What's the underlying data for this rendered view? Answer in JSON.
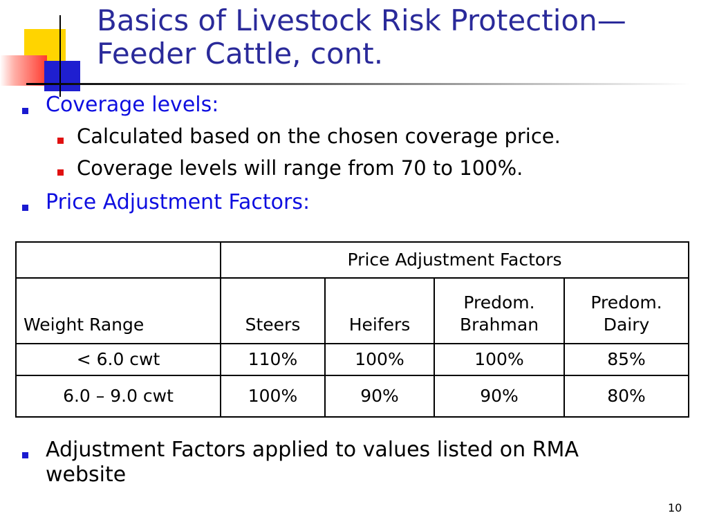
{
  "title": {
    "line1": "Basics of Livestock Risk Protection—",
    "line2": "Feeder Cattle, cont."
  },
  "bullets": {
    "coverage_levels": "Coverage levels:",
    "sub1": "Calculated based on the chosen coverage price.",
    "sub2": "Coverage levels will range from 70 to 100%.",
    "price_adjustment": "Price Adjustment Factors:",
    "adjustment_note_line1": "Adjustment Factors applied to values listed on RMA",
    "adjustment_note_line2": "website"
  },
  "table": {
    "group_header": "Price Adjustment Factors",
    "columns": [
      "Weight Range",
      "Steers",
      "Heifers",
      "Predom. Brahman",
      "Predom. Dairy"
    ],
    "col_brahman_l1": "Predom.",
    "col_brahman_l2": "Brahman",
    "col_dairy_l1": "Predom.",
    "col_dairy_l2": "Dairy",
    "rows": [
      [
        "< 6.0 cwt",
        "110%",
        "100%",
        "100%",
        "85%"
      ],
      [
        "6.0 – 9.0 cwt",
        "100%",
        "90%",
        "90%",
        "80%"
      ]
    ]
  },
  "slide_number": "10",
  "colors": {
    "title": "#2a2a9a",
    "level1_text": "#0e0ee0",
    "level1_bullet": "#1a1ad0",
    "level2_bullet": "#e01010",
    "deco_yellow": "#ffd400",
    "deco_blue": "#1f1fd0",
    "deco_red": "#ff3a2e"
  }
}
